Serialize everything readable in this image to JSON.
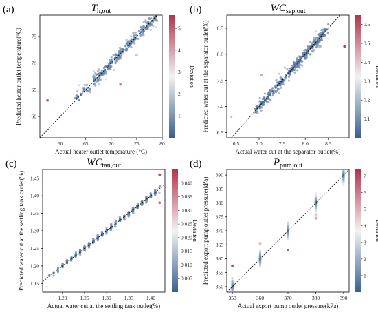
{
  "colorbar": {
    "low": "#3a5f8f",
    "mid": "#f2f2f2",
    "high": "#b3344b",
    "label": "Deviation"
  },
  "chart_data": [
    {
      "type": "scatter",
      "panel_label": "(a)",
      "title_main": "T",
      "title_sub": "h,out",
      "xlabel": "Actual heater outlet temperature (°C)",
      "ylabel": "Predicted heater outlet temperature(°C)",
      "xlim": [
        56,
        80
      ],
      "ylim": [
        56,
        79
      ],
      "xticks": [
        60,
        65,
        70,
        75,
        80
      ],
      "yticks": [
        60,
        65,
        70,
        75
      ],
      "cbar_lim": [
        0,
        5.6
      ],
      "cbar_ticks": [
        1,
        2,
        3,
        4,
        5
      ],
      "gen": {
        "n": 260,
        "seed": 11,
        "x0": 62,
        "x1": 79,
        "noise": 0.7,
        "dev_scale": 1.4
      },
      "outliers": [
        {
          "x": 57.5,
          "y": 63.0,
          "d": 5.0
        },
        {
          "x": 71.8,
          "y": 66.0,
          "d": 4.5
        },
        {
          "x": 75.0,
          "y": 71.5,
          "d": 3.6
        },
        {
          "x": 69.0,
          "y": 67.0,
          "d": 2.3
        }
      ]
    },
    {
      "type": "scatter",
      "panel_label": "(b)",
      "title_main": "WC",
      "title_sub": "sep,out",
      "xlabel": "Actual water cut at the separator outlet(%)",
      "ylabel": "Predicted water cut at the separator outlet(%)",
      "xlim": [
        6.3,
        8.95
      ],
      "ylim": [
        6.4,
        8.75
      ],
      "xticks": [
        6.5,
        7.0,
        7.5,
        8.0,
        8.5
      ],
      "yticks": [
        6.5,
        7.0,
        7.5,
        8.0,
        8.5
      ],
      "cbar_lim": [
        0,
        0.65
      ],
      "cbar_ticks": [
        0.1,
        0.2,
        0.3,
        0.4,
        0.5,
        0.6
      ],
      "gen": {
        "n": 320,
        "seed": 23,
        "x0": 6.9,
        "x1": 8.5,
        "noise": 0.06,
        "dev_scale": 0.12
      },
      "outliers": [
        {
          "x": 8.85,
          "y": 8.15,
          "d": 0.63
        },
        {
          "x": 7.05,
          "y": 7.6,
          "d": 0.45
        },
        {
          "x": 6.4,
          "y": 6.8,
          "d": 0.2
        },
        {
          "x": 8.5,
          "y": 8.3,
          "d": 0.3
        }
      ]
    },
    {
      "type": "scatter",
      "panel_label": "(c)",
      "title_main": "WC",
      "title_sub": "tan,out",
      "xlabel": "Actual water cut at the settling tank outlet(%)",
      "ylabel": "Predicted water cut at the settling tank outlet(%)",
      "xlim": [
        1.155,
        1.432
      ],
      "ylim": [
        1.125,
        1.475
      ],
      "xticks": [
        1.2,
        1.25,
        1.3,
        1.35,
        1.4
      ],
      "yticks": [
        1.15,
        1.2,
        1.25,
        1.3,
        1.35,
        1.4,
        1.45
      ],
      "cbar_lim": [
        0,
        0.045
      ],
      "cbar_ticks": [
        0.005,
        0.01,
        0.015,
        0.02,
        0.025,
        0.03,
        0.035,
        0.04
      ],
      "gen": {
        "n": 300,
        "seed": 37,
        "x0": 1.17,
        "x1": 1.42,
        "noise": 0.004,
        "dev_scale": 0.006,
        "grid": 0.01
      },
      "outliers": [
        {
          "x": 1.42,
          "y": 1.46,
          "d": 0.042
        },
        {
          "x": 1.42,
          "y": 1.38,
          "d": 0.038
        },
        {
          "x": 1.165,
          "y": 1.14,
          "d": 0.02
        }
      ]
    },
    {
      "type": "scatter",
      "panel_label": "(d)",
      "title_main": "P",
      "title_sub": "pum,out",
      "xlabel": "Actual export pump outlet pressure(kPa)",
      "ylabel": "Predicted export pump outlet pressure(kPa)",
      "xlim": [
        348,
        392
      ],
      "ylim": [
        348,
        392
      ],
      "xticks": [
        350,
        360,
        370,
        380,
        390
      ],
      "yticks": [
        350,
        355,
        360,
        365,
        370,
        375,
        380,
        385,
        390
      ],
      "cbar_lim": [
        0,
        7.4
      ],
      "cbar_ticks": [
        1,
        2,
        3,
        4,
        5,
        6,
        7
      ],
      "gen": {
        "n": 300,
        "seed": 53,
        "cats": [
          350,
          360,
          370,
          380,
          390
        ],
        "noise": 1.4,
        "dev_scale": 1.6
      },
      "outliers": [
        {
          "x": 350,
          "y": 357.5,
          "d": 7.0
        },
        {
          "x": 370,
          "y": 363,
          "d": 6.8
        },
        {
          "x": 380,
          "y": 374.5,
          "d": 5.2
        },
        {
          "x": 380,
          "y": 375.5,
          "d": 4.5
        },
        {
          "x": 360,
          "y": 365.5,
          "d": 5.0
        }
      ]
    }
  ]
}
